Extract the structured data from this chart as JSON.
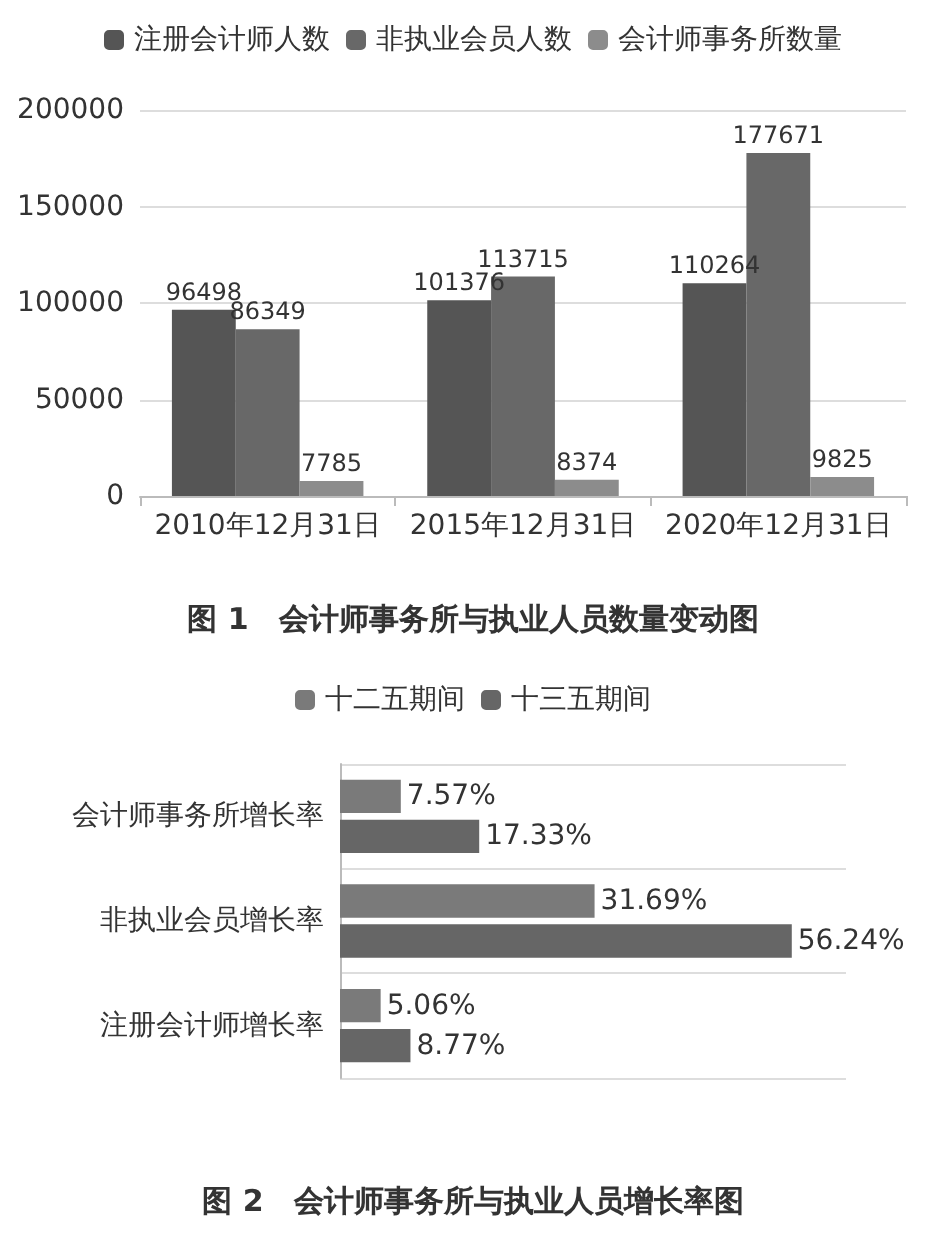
{
  "chart_data": [
    {
      "type": "bar",
      "title": "图 1　会计师事务所与执业人员数量变动图",
      "categories": [
        "2010年12月31日",
        "2015年12月31日",
        "2020年12月31日"
      ],
      "series": [
        {
          "name": "注册会计师人数",
          "color": "#555555",
          "values": [
            96498,
            101376,
            110264
          ]
        },
        {
          "name": "非执业会员人数",
          "color": "#686868",
          "values": [
            86349,
            113715,
            177671
          ]
        },
        {
          "name": "会计师事务所数量",
          "color": "#8c8c8c",
          "values": [
            7785,
            8374,
            9825
          ]
        }
      ],
      "ylim": [
        0,
        200000
      ],
      "yticks": [
        0,
        50000,
        100000,
        150000,
        200000
      ],
      "grid": "y",
      "legend": "top",
      "data_labels": true
    },
    {
      "type": "bar",
      "orientation": "horizontal",
      "title": "图 2　会计师事务所与执业人员增长率图",
      "categories": [
        "会计师事务所增长率",
        "非执业会员增长率",
        "注册会计师增长率"
      ],
      "series": [
        {
          "name": "十二五期间",
          "color": "#7a7a7a",
          "values": [
            7.57,
            31.69,
            5.06
          ],
          "value_labels": [
            "7.57%",
            "31.69%",
            "5.06%"
          ]
        },
        {
          "name": "十三五期间",
          "color": "#666666",
          "values": [
            17.33,
            56.24,
            8.77
          ],
          "value_labels": [
            "17.33%",
            "56.24%",
            "8.77%"
          ]
        }
      ],
      "grid": "y",
      "legend": "top"
    }
  ]
}
